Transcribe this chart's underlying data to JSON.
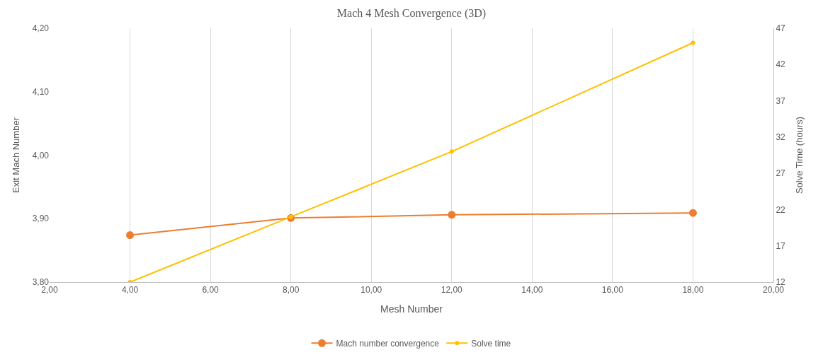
{
  "chart_data": {
    "type": "line",
    "title": "Mach 4 Mesh Convergence (3D)",
    "xlabel": "Mesh Number",
    "ylabel": "Exit Mach Number",
    "y2label": "Solve Time (hours)",
    "x": [
      4,
      8,
      12,
      18
    ],
    "series": [
      {
        "name": "Mach number convergence",
        "color": "#ed7d31",
        "values": [
          3.874,
          3.901,
          3.906,
          3.909
        ]
      },
      {
        "name": "Solve time",
        "color": "#ffc000",
        "values": [
          12,
          21,
          30,
          45
        ],
        "axis": "y2"
      }
    ],
    "xlim": [
      2,
      20
    ],
    "xticks": [
      {
        "value": 2,
        "label": "2,00"
      },
      {
        "value": 4,
        "label": "4,00"
      },
      {
        "value": 6,
        "label": "6,00"
      },
      {
        "value": 8,
        "label": "8,00"
      },
      {
        "value": 10,
        "label": "10,00"
      },
      {
        "value": 12,
        "label": "12,00"
      },
      {
        "value": 14,
        "label": "14,00"
      },
      {
        "value": 16,
        "label": "16,00"
      },
      {
        "value": 18,
        "label": "18,00"
      },
      {
        "value": 20,
        "label": "20,00"
      }
    ],
    "ylim": [
      3.8,
      4.2
    ],
    "yticks": [
      {
        "value": 3.8,
        "label": "3,80"
      },
      {
        "value": 3.9,
        "label": "3,90"
      },
      {
        "value": 4.0,
        "label": "4,00"
      },
      {
        "value": 4.1,
        "label": "4,10"
      },
      {
        "value": 4.2,
        "label": "4,20"
      }
    ],
    "y2lim": [
      12,
      47
    ],
    "y2ticks": [
      12,
      17,
      22,
      27,
      32,
      37,
      42,
      47
    ],
    "grid": "x",
    "legend": "bottom",
    "marker": "circle",
    "line_style": "solid"
  }
}
